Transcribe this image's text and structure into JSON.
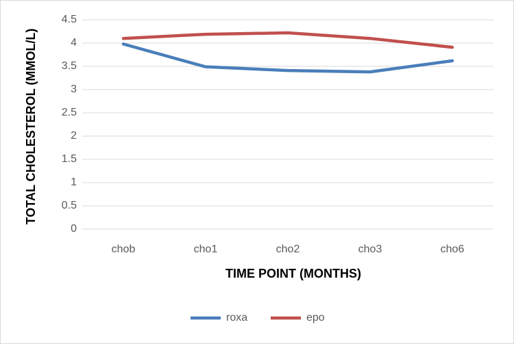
{
  "chart_data": {
    "type": "line",
    "x_label": "TIME POINT (MONTHS)",
    "y_label": "TOTAL CHOLESTEROL (MMOL/L)",
    "categories": [
      "chob",
      "cho1",
      "cho2",
      "cho3",
      "cho6"
    ],
    "series": [
      {
        "name": "roxa",
        "color": "#4a7ebb",
        "values": [
          3.98,
          3.49,
          3.41,
          3.38,
          3.62
        ]
      },
      {
        "name": "epo",
        "color": "#c0504d",
        "values": [
          4.1,
          4.19,
          4.22,
          4.1,
          3.91
        ]
      }
    ],
    "ylim": [
      0,
      4.5
    ],
    "yticks": [
      0,
      0.5,
      1,
      1.5,
      2,
      2.5,
      3,
      3.5,
      4,
      4.5
    ],
    "grid": true,
    "legend": "bottom"
  }
}
